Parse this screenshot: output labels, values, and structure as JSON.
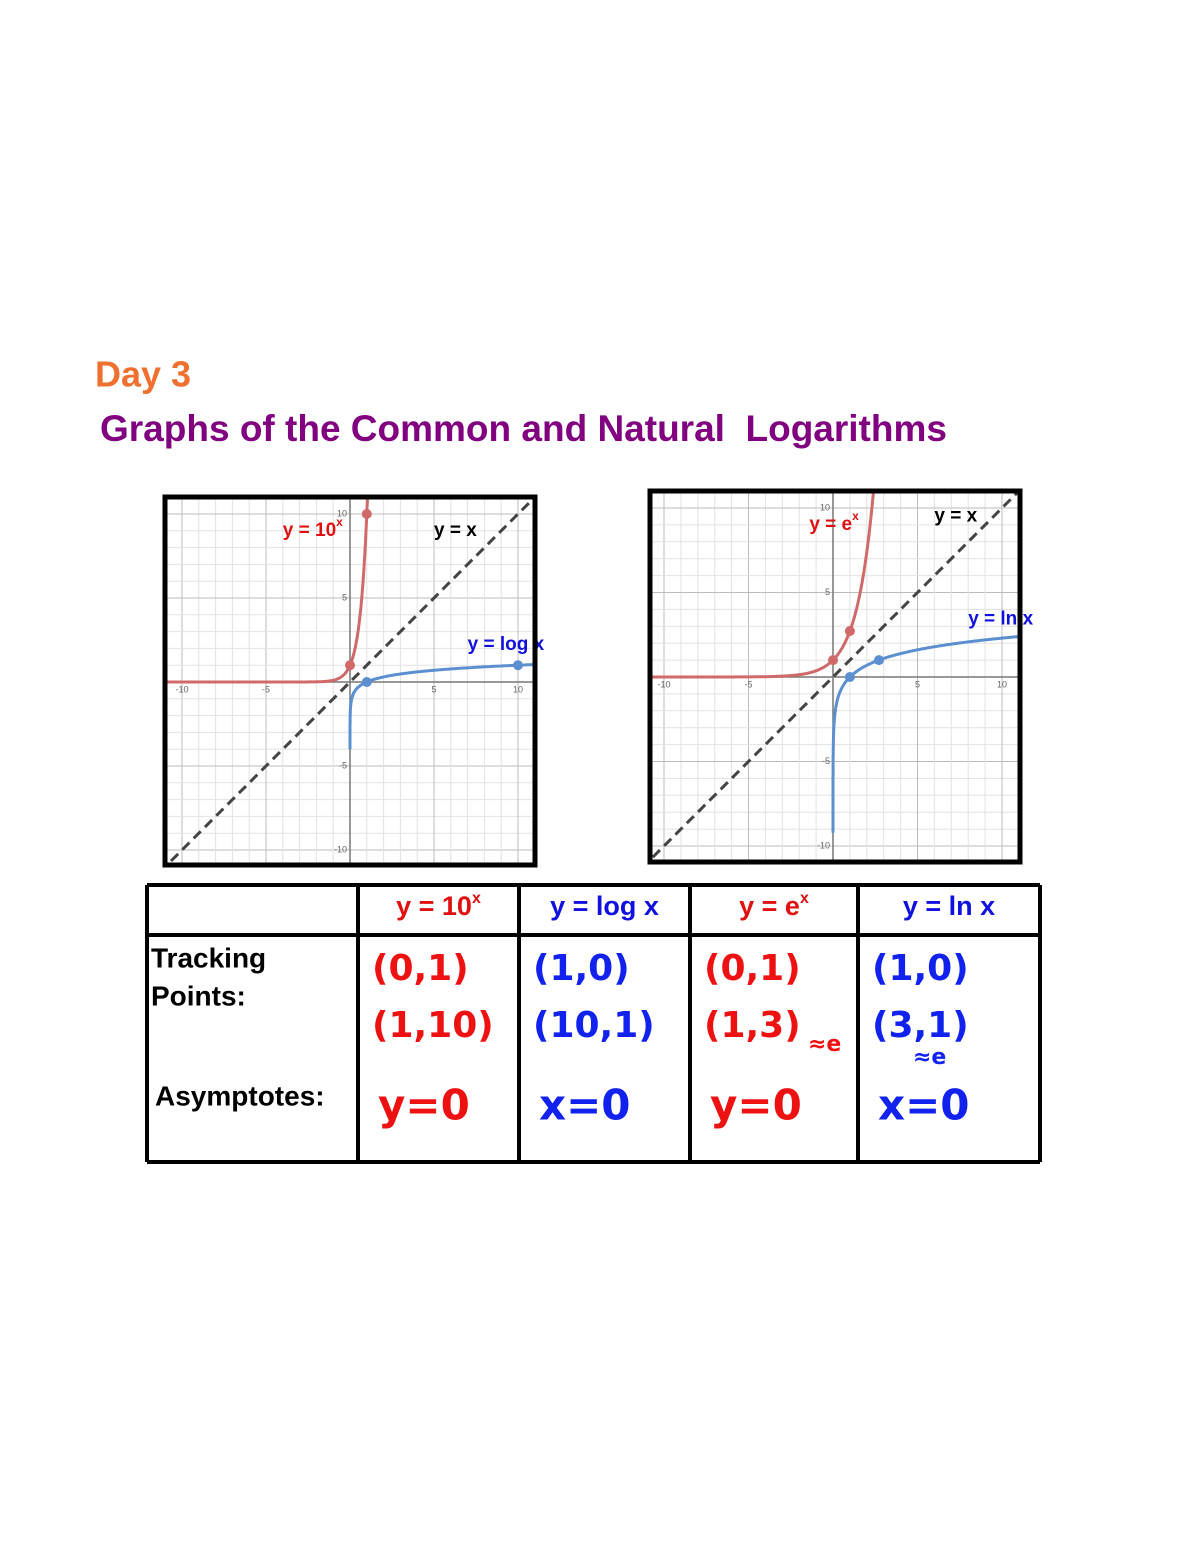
{
  "header": {
    "day": "Day 3",
    "title": "Graphs of the Common and Natural  Logarithms"
  },
  "graphs": [
    {
      "ticks": [
        -10,
        -5,
        5,
        10
      ],
      "exp_label": "y = 10",
      "exp_sup": "x",
      "line_label": "y = x",
      "log_label": "y = log x",
      "exp_points": [
        [
          0,
          1
        ],
        [
          1,
          10
        ]
      ],
      "log_points": [
        [
          1,
          0
        ],
        [
          10,
          1
        ]
      ]
    },
    {
      "ticks": [
        -10,
        -5,
        5,
        10
      ],
      "exp_label": "y = e",
      "exp_sup": "x",
      "line_label": "y = x",
      "log_label": "y = ln x",
      "exp_points": [
        [
          0,
          1
        ],
        [
          1,
          2.72
        ]
      ],
      "log_points": [
        [
          1,
          0
        ],
        [
          2.72,
          1
        ]
      ]
    }
  ],
  "table": {
    "headers": [
      {
        "base": "y = 10",
        "sup": "x"
      },
      {
        "base": "y = log x",
        "sup": ""
      },
      {
        "base": "y = e",
        "sup": "x"
      },
      {
        "base": "y = ln x",
        "sup": ""
      }
    ],
    "row_labels": {
      "tracking": [
        "Tracking",
        "Points:"
      ],
      "asymptotes": "Asymptotes:"
    },
    "tracking": [
      [
        "(0,1)",
        "(1,10)"
      ],
      [
        "(1,0)",
        "(10,1)"
      ],
      [
        "(0,1)",
        "(1,3)"
      ],
      [
        "(1,0)",
        "(3,1)"
      ]
    ],
    "notes": [
      "",
      "",
      "≈e",
      "≈e"
    ],
    "asymptotes": [
      "y=0",
      "x=0",
      "y=0",
      "x=0"
    ]
  }
}
